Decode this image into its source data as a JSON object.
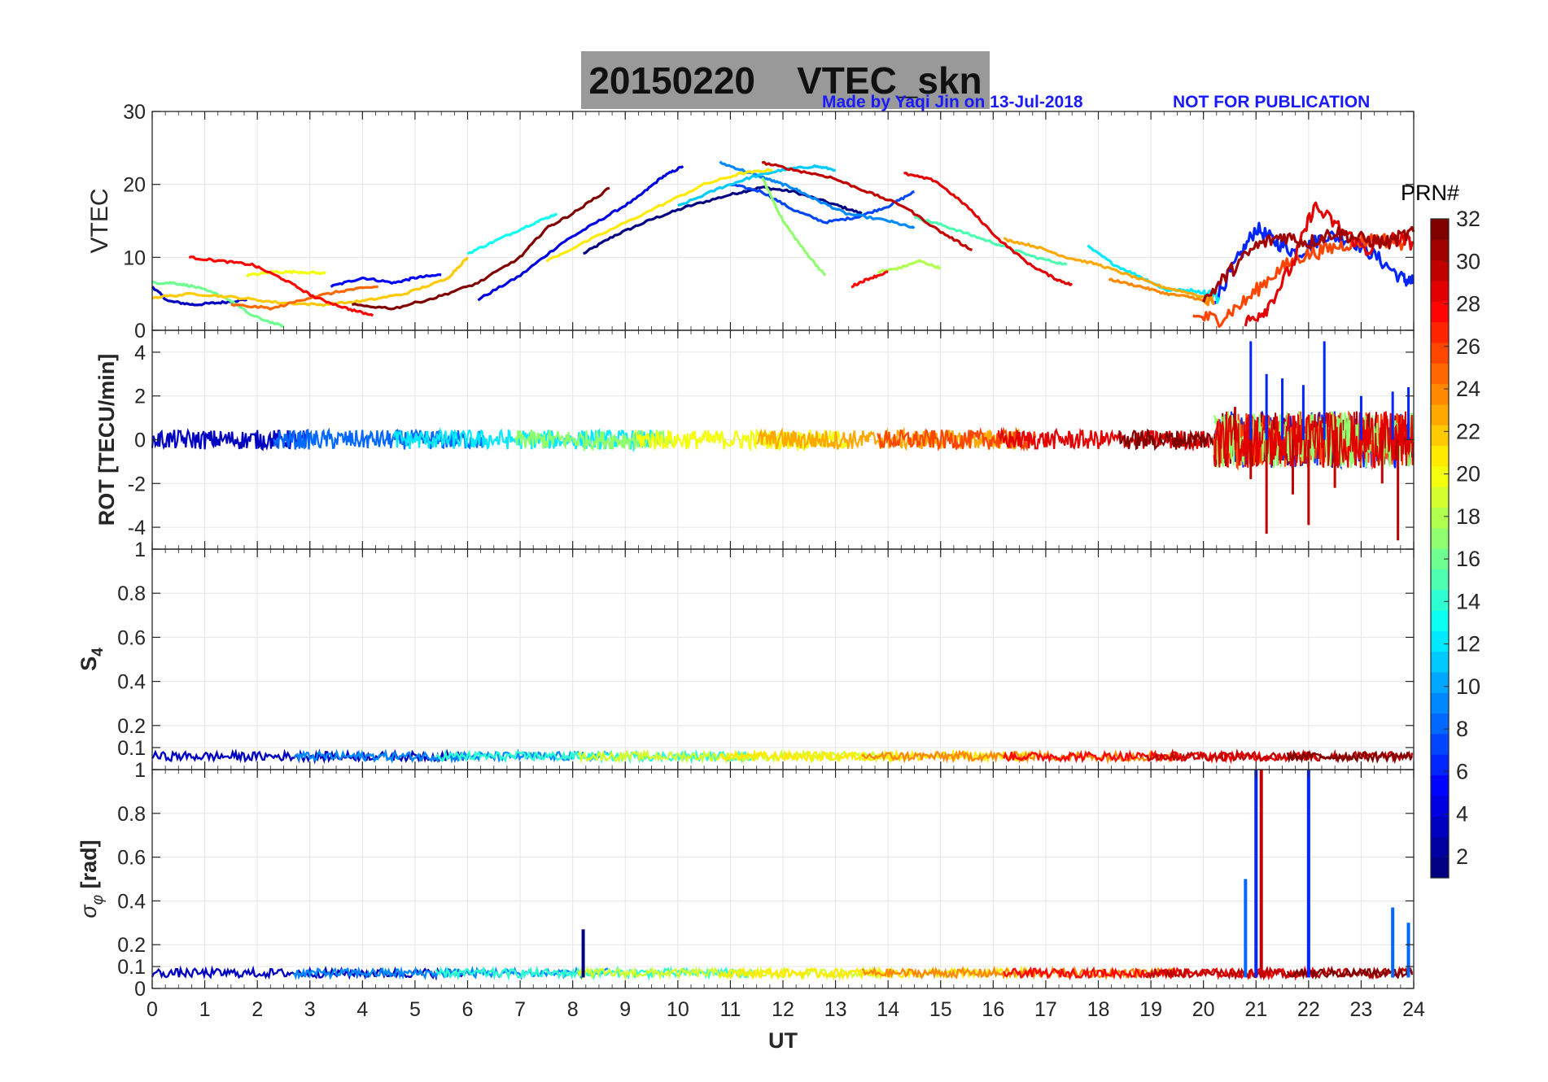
{
  "figure": {
    "title_date": "20150220",
    "title_label": "VTEC_skn",
    "credit": "Made by Yaqi Jin on 13-Jul-2018",
    "notice": "NOT FOR PUBLICATION",
    "xlabel": "UT",
    "colorbar_label": "PRN#"
  },
  "chart_data": [
    {
      "type": "line",
      "panel": "VTEC",
      "ylabel": "VTEC",
      "xlim": [
        0,
        24
      ],
      "ylim": [
        0,
        30
      ],
      "yticks": [
        0,
        10,
        20,
        30
      ],
      "grid": true,
      "series": [
        {
          "prn": 1,
          "x": [
            8.2,
            8.8,
            9.5,
            10.2,
            11.0,
            11.6,
            12.2,
            13.0,
            13.5
          ],
          "y": [
            10.5,
            13.0,
            15.2,
            17.0,
            18.6,
            19.6,
            19.0,
            17.2,
            16.0
          ]
        },
        {
          "prn": 3,
          "x": [
            0.0,
            0.3,
            0.8,
            1.3,
            1.8
          ],
          "y": [
            6.0,
            4.0,
            3.5,
            3.8,
            4.2
          ]
        },
        {
          "prn": 4,
          "x": [
            6.2,
            7.0,
            7.8,
            8.5,
            9.2,
            9.7,
            10.1
          ],
          "y": [
            4.2,
            7.5,
            12.0,
            15.0,
            18.0,
            21.0,
            22.5
          ]
        },
        {
          "prn": 5,
          "x": [
            3.4,
            4.0,
            4.6,
            5.0,
            5.5
          ],
          "y": [
            6.0,
            7.2,
            6.5,
            7.2,
            7.6
          ]
        },
        {
          "prn": 6,
          "x": [
            20.2,
            20.6,
            21.0,
            21.4,
            21.8,
            22.3,
            22.8,
            23.3,
            23.8,
            24.0
          ],
          "y": [
            4.0,
            9.0,
            14.0,
            12.0,
            10.5,
            13.0,
            12.5,
            10.0,
            7.0,
            6.5
          ]
        },
        {
          "prn": 7,
          "x": [
            11.0,
            11.6,
            12.2,
            12.8,
            13.4,
            14.0,
            14.5
          ],
          "y": [
            20.0,
            19.0,
            16.5,
            14.8,
            15.5,
            17.0,
            19.0
          ]
        },
        {
          "prn": 9,
          "x": [
            10.8,
            11.4,
            11.8,
            12.2,
            12.6,
            13.2,
            14.0,
            14.5
          ],
          "y": [
            23.0,
            21.5,
            20.5,
            19.5,
            18.0,
            16.0,
            15.0,
            14.0
          ]
        },
        {
          "prn": 11,
          "x": [
            10.0,
            10.8,
            11.4,
            12.0,
            12.6,
            13.0
          ],
          "y": [
            17.0,
            19.5,
            21.0,
            22.0,
            22.5,
            22.0
          ]
        },
        {
          "prn": 12,
          "x": [
            17.8,
            18.3,
            18.9,
            19.3,
            19.8,
            20.3
          ],
          "y": [
            11.5,
            9.0,
            7.0,
            5.5,
            5.5,
            4.5
          ]
        },
        {
          "prn": 13,
          "x": [
            6.0,
            6.6,
            7.2,
            7.7
          ],
          "y": [
            10.5,
            12.5,
            14.5,
            16.0
          ]
        },
        {
          "prn": 15,
          "x": [
            14.5,
            15.0,
            15.6,
            16.2,
            16.8,
            17.4
          ],
          "y": [
            15.5,
            14.5,
            13.0,
            11.5,
            10.0,
            9.0
          ]
        },
        {
          "prn": 16,
          "x": [
            0.0,
            0.4,
            0.8,
            1.4,
            1.9,
            2.5
          ],
          "y": [
            6.5,
            6.5,
            6.0,
            4.5,
            2.0,
            0.5
          ]
        },
        {
          "prn": 17,
          "x": [
            11.6,
            12.0,
            12.4,
            12.8
          ],
          "y": [
            21.0,
            15.0,
            11.0,
            7.5
          ]
        },
        {
          "prn": 18,
          "x": [
            13.8,
            14.2,
            14.6,
            15.0
          ],
          "y": [
            8.0,
            8.5,
            9.5,
            8.5
          ]
        },
        {
          "prn": 20,
          "x": [
            1.8,
            2.3,
            2.8,
            3.3
          ],
          "y": [
            7.5,
            8.0,
            8.0,
            7.8
          ]
        },
        {
          "prn": 21,
          "x": [
            7.5,
            8.5,
            9.5,
            10.5,
            11.2,
            11.8
          ],
          "y": [
            9.5,
            13.0,
            16.5,
            20.0,
            21.5,
            22.0
          ]
        },
        {
          "prn": 22,
          "x": [
            0.0,
            0.8,
            1.6,
            2.4,
            3.2,
            4.0,
            4.8,
            5.6,
            6.0
          ],
          "y": [
            4.5,
            5.0,
            4.5,
            3.8,
            3.5,
            4.0,
            5.0,
            7.0,
            10.0
          ]
        },
        {
          "prn": 23,
          "x": [
            16.2,
            16.8,
            17.4,
            18.0,
            18.6,
            19.2,
            19.8,
            20.2
          ],
          "y": [
            12.5,
            11.5,
            10.0,
            9.0,
            7.5,
            6.0,
            5.0,
            4.0
          ]
        },
        {
          "prn": 24,
          "x": [
            18.2,
            18.8,
            19.3,
            19.8,
            20.2
          ],
          "y": [
            7.0,
            6.0,
            5.0,
            4.5,
            3.5
          ]
        },
        {
          "prn": 25,
          "x": [
            1.5,
            2.3,
            3.0,
            3.7,
            4.3
          ],
          "y": [
            3.5,
            3.0,
            4.5,
            5.5,
            6.0
          ]
        },
        {
          "prn": 26,
          "x": [
            19.8,
            20.3,
            20.8,
            21.3,
            21.8,
            22.3,
            22.8,
            23.3,
            23.8
          ],
          "y": [
            2.0,
            1.5,
            4.0,
            7.5,
            10.0,
            11.0,
            12.0,
            12.5,
            12.0
          ]
        },
        {
          "prn": 28,
          "x": [
            0.7,
            1.3,
            1.9,
            2.5,
            3.1,
            3.7,
            4.2
          ],
          "y": [
            10.0,
            9.5,
            9.0,
            7.0,
            4.5,
            3.0,
            2.0
          ]
        },
        {
          "prn": 28,
          "x": [
            13.3,
            13.6,
            14.0
          ],
          "y": [
            6.0,
            7.0,
            8.0
          ]
        },
        {
          "prn": 29,
          "x": [
            14.3,
            14.9,
            15.5,
            16.1,
            16.7,
            17.2,
            17.5
          ],
          "y": [
            21.5,
            20.5,
            17.0,
            12.5,
            9.0,
            7.0,
            6.2
          ]
        },
        {
          "prn": 29,
          "x": [
            20.8,
            21.2,
            21.7,
            22.1,
            22.6,
            23.1,
            23.6,
            24.0
          ],
          "y": [
            1.0,
            3.0,
            9.0,
            17.0,
            14.0,
            11.0,
            12.5,
            12.0
          ]
        },
        {
          "prn": 30,
          "x": [
            11.6,
            12.2,
            12.9,
            13.6,
            14.3,
            15.0,
            15.6
          ],
          "y": [
            23.0,
            22.0,
            21.0,
            19.0,
            17.0,
            13.5,
            11.0
          ]
        },
        {
          "prn": 31,
          "x": [
            20.0,
            20.5,
            21.0,
            21.5,
            22.0,
            22.5,
            23.0,
            23.5,
            24.0
          ],
          "y": [
            4.0,
            8.0,
            11.5,
            13.0,
            12.0,
            13.5,
            12.5,
            12.0,
            13.5
          ]
        },
        {
          "prn": 32,
          "x": [
            3.8,
            4.6,
            5.4,
            6.2,
            7.0,
            7.5,
            8.0,
            8.7
          ],
          "y": [
            3.5,
            3.0,
            4.5,
            6.5,
            10.0,
            14.0,
            16.0,
            19.5
          ]
        }
      ]
    },
    {
      "type": "line",
      "panel": "ROT",
      "ylabel": "ROT [TECU/min]",
      "xlim": [
        0,
        24
      ],
      "ylim": [
        -5,
        5
      ],
      "yticks": [
        -4,
        -2,
        0,
        2,
        4
      ],
      "grid": true,
      "quiet_band": [
        -0.4,
        0.6
      ],
      "disturbed_interval": [
        20.2,
        24.0
      ],
      "spikes": [
        {
          "x": 20.6,
          "y": 1.5
        },
        {
          "x": 20.9,
          "y": 4.5
        },
        {
          "x": 20.9,
          "y": -1.8
        },
        {
          "x": 21.2,
          "y": 3.0
        },
        {
          "x": 21.2,
          "y": -4.3
        },
        {
          "x": 21.5,
          "y": 2.8
        },
        {
          "x": 21.7,
          "y": -2.5
        },
        {
          "x": 21.9,
          "y": 2.5
        },
        {
          "x": 22.0,
          "y": -3.9
        },
        {
          "x": 22.3,
          "y": 4.5
        },
        {
          "x": 22.5,
          "y": -2.2
        },
        {
          "x": 23.0,
          "y": 2.0
        },
        {
          "x": 23.4,
          "y": -2.0
        },
        {
          "x": 23.6,
          "y": 2.2
        },
        {
          "x": 23.7,
          "y": -4.6
        },
        {
          "x": 23.9,
          "y": 2.4
        }
      ]
    },
    {
      "type": "line",
      "panel": "S4",
      "ylabel": "S4",
      "xlim": [
        0,
        24
      ],
      "ylim": [
        0,
        1
      ],
      "yticks": [
        0.1,
        0.2,
        0.4,
        0.6,
        0.8,
        1
      ],
      "grid": true,
      "background_level": [
        0.04,
        0.09
      ]
    },
    {
      "type": "line",
      "panel": "sigma_phi",
      "ylabel": "σφ [rad]",
      "xlim": [
        0,
        24
      ],
      "ylim": [
        0,
        1
      ],
      "yticks": [
        0,
        0.1,
        0.2,
        0.4,
        0.6,
        0.8,
        1
      ],
      "grid": true,
      "background_level": [
        0.05,
        0.1
      ],
      "spikes": [
        {
          "x": 8.2,
          "y": 0.27
        },
        {
          "x": 20.8,
          "y": 0.5
        },
        {
          "x": 21.0,
          "y": 1.0
        },
        {
          "x": 21.1,
          "y": 1.0
        },
        {
          "x": 22.0,
          "y": 1.0
        },
        {
          "x": 23.6,
          "y": 0.37
        },
        {
          "x": 23.9,
          "y": 0.3
        }
      ]
    }
  ],
  "xaxis": {
    "ticks": [
      0,
      1,
      2,
      3,
      4,
      5,
      6,
      7,
      8,
      9,
      10,
      11,
      12,
      13,
      14,
      15,
      16,
      17,
      18,
      19,
      20,
      21,
      22,
      23,
      24
    ]
  },
  "colorbar": {
    "range": [
      1,
      32
    ],
    "ticks": [
      2,
      4,
      6,
      8,
      10,
      12,
      14,
      16,
      18,
      20,
      22,
      24,
      26,
      28,
      30,
      32
    ],
    "colormap": "jet",
    "levels": 32
  },
  "colors": {
    "grid": "#e6e6e6",
    "axis": "#262626",
    "title_bg": "#999999",
    "credit": "#1a1aff"
  }
}
